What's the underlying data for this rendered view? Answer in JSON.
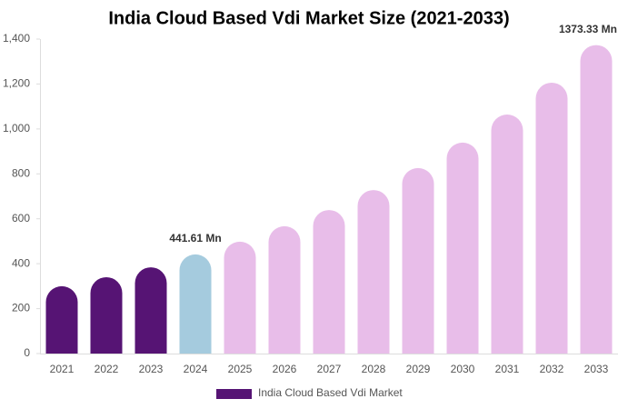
{
  "chart_data": {
    "type": "bar",
    "title": "India Cloud Based Vdi Market Size (2021-2033)",
    "categories": [
      "2021",
      "2022",
      "2023",
      "2024",
      "2025",
      "2026",
      "2027",
      "2028",
      "2029",
      "2030",
      "2031",
      "2032",
      "2033"
    ],
    "series": [
      {
        "name": "India Cloud Based Vdi Market",
        "color": "#561474",
        "values": [
          300,
          340,
          384,
          441.61,
          498,
          567,
          639,
          728,
          826,
          939,
          1064,
          1206,
          1373.33
        ],
        "value_labels": [
          null,
          null,
          null,
          "441.61 Mn",
          null,
          null,
          null,
          null,
          null,
          null,
          null,
          null,
          "1373.33 Mn"
        ],
        "colors": [
          "#561474",
          "#561474",
          "#561474",
          "#a5cbde",
          "#e8bde9",
          "#e8bde9",
          "#e8bde9",
          "#e8bde9",
          "#e8bde9",
          "#e8bde9",
          "#e8bde9",
          "#e8bde9",
          "#e8bde9"
        ]
      }
    ],
    "ylim": [
      0,
      1400
    ],
    "yticks": [
      0,
      200,
      400,
      600,
      800,
      {
        "value": 1000,
        "label": "1,000"
      },
      {
        "value": 1200,
        "label": "1,200"
      },
      {
        "value": 1400,
        "label": "1,400"
      }
    ],
    "legend": "bottom"
  }
}
